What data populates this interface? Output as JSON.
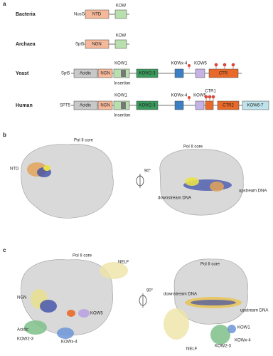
{
  "panel_a": {
    "label": "a",
    "bacteria": {
      "organism": "Bacteria",
      "protein": "NusG",
      "domains": [
        "NTD",
        "KOW"
      ]
    },
    "archaea": {
      "organism": "Archaea",
      "protein": "Spt5",
      "domains": [
        "NGN",
        "KOW"
      ]
    },
    "yeast": {
      "organism": "Yeast",
      "protein": "Spt5",
      "domains": [
        "Acidic",
        "NGN",
        "KOW1",
        "Insertion",
        "KOW2-3",
        "KOWx-4",
        "KOW5",
        "CTR"
      ]
    },
    "human": {
      "organism": "Human",
      "protein": "SPT5",
      "domains": [
        "Acidic",
        "NGN",
        "KOW1",
        "Insertion",
        "KOW2-3",
        "KOWx-4",
        "KOW5",
        "CTR1",
        "CTR2",
        "KOW6-7"
      ]
    }
  },
  "panel_b": {
    "label": "b",
    "left": [
      "Pol II core",
      "NTD"
    ],
    "rotation": "90°",
    "right": [
      "Pol II core",
      "downstream DNA",
      "upstream DNA"
    ]
  },
  "panel_c": {
    "label": "c",
    "left": [
      "Pol II core",
      "NELF",
      "NGN",
      "Acidic",
      "KOW2-3",
      "KOWx-4",
      "KOW5"
    ],
    "rotation": "90°",
    "right": [
      "Pol II core",
      "downstream DNA",
      "upstream DNA",
      "NELF",
      "KOW1",
      "KOW2-3",
      "KOWx-4"
    ]
  }
}
